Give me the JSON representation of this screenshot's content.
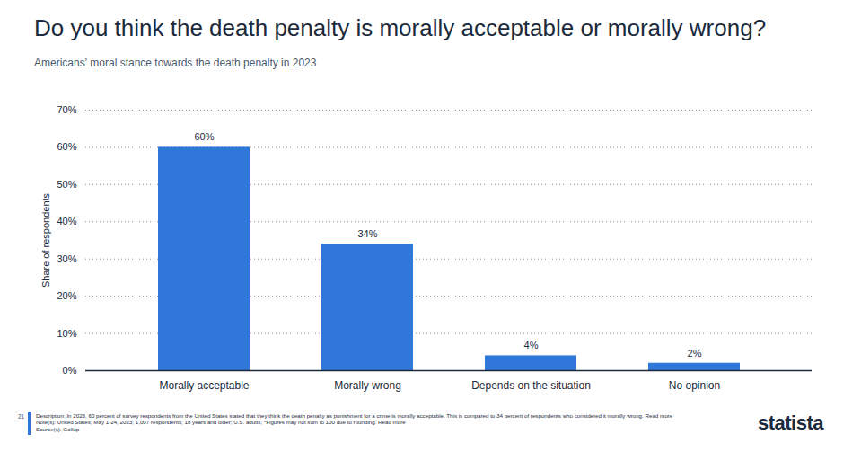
{
  "chart_data": {
    "type": "bar",
    "title": "Do you think the death penalty is morally acceptable or morally wrong?",
    "subtitle": "Americans' moral stance towards the death penalty in 2023",
    "y_label": "Share of respondents",
    "categories": [
      "Morally acceptable",
      "Morally wrong",
      "Depends on the situation",
      "No opinion"
    ],
    "values": [
      60,
      34,
      4,
      2
    ],
    "value_labels": [
      "60%",
      "34%",
      "4%",
      "2%"
    ],
    "color": "#2f77d9",
    "ylim": [
      0,
      70
    ],
    "yticks": [
      {
        "value": 0,
        "label": "0%"
      },
      {
        "value": 10,
        "label": "10%"
      },
      {
        "value": 20,
        "label": "20%"
      },
      {
        "value": 30,
        "label": "30%"
      },
      {
        "value": 40,
        "label": "40%"
      },
      {
        "value": 50,
        "label": "50%"
      },
      {
        "value": 60,
        "label": "60%"
      },
      {
        "value": 70,
        "label": "70%"
      }
    ],
    "grid": true,
    "data_labels": true,
    "page_number": "21",
    "description": "Description: In 2023, 60 percent of survey respondents from the United States stated that they think the death penalty as punishment for a crime is morally acceptable. This is compared to 34 percent of respondents who considered it morally wrong. Read more",
    "notes": "Note(s): United States; May 1-24, 2023; 1,007 respondents; 18 years and older; U.S. adults; *Figures may not sum to 100 due to rounding. Read more",
    "source": "Source(s): Gallup",
    "brand": "statista"
  }
}
